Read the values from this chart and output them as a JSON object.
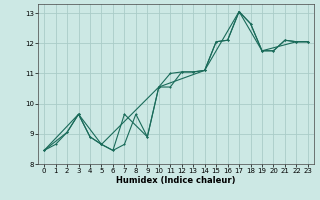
{
  "xlabel": "Humidex (Indice chaleur)",
  "bg_color": "#cce8e4",
  "grid_color": "#aaccc8",
  "line_color": "#1a6b5a",
  "xlim": [
    -0.5,
    23.5
  ],
  "ylim": [
    8.0,
    13.3
  ],
  "yticks": [
    8,
    9,
    10,
    11,
    12,
    13
  ],
  "xticks": [
    0,
    1,
    2,
    3,
    4,
    5,
    6,
    7,
    8,
    9,
    10,
    11,
    12,
    13,
    14,
    15,
    16,
    17,
    18,
    19,
    20,
    21,
    22,
    23
  ],
  "series1_x": [
    0,
    1,
    2,
    3,
    4,
    5,
    6,
    7,
    8,
    9,
    10,
    11,
    12,
    13,
    14,
    15,
    16,
    17,
    18,
    19,
    20,
    21,
    22,
    23
  ],
  "series1_y": [
    8.45,
    8.65,
    9.05,
    9.65,
    8.9,
    8.65,
    8.45,
    8.65,
    9.65,
    8.9,
    10.55,
    11.0,
    11.05,
    11.05,
    11.1,
    12.05,
    12.1,
    13.05,
    12.65,
    11.75,
    11.75,
    12.1,
    12.05,
    12.05
  ],
  "series2_x": [
    0,
    2,
    3,
    4,
    5,
    6,
    7,
    9,
    10,
    11,
    12,
    13,
    14,
    15,
    16,
    17,
    18,
    19,
    20,
    21,
    22,
    23
  ],
  "series2_y": [
    8.45,
    9.05,
    9.65,
    8.9,
    8.65,
    8.45,
    9.65,
    8.9,
    10.55,
    10.55,
    11.05,
    11.05,
    11.1,
    12.05,
    12.1,
    13.05,
    12.65,
    11.75,
    11.75,
    12.1,
    12.05,
    12.05
  ],
  "series3_x": [
    0,
    3,
    5,
    10,
    14,
    17,
    19,
    22,
    23
  ],
  "series3_y": [
    8.45,
    9.65,
    8.65,
    10.55,
    11.1,
    13.05,
    11.75,
    12.05,
    12.05
  ]
}
